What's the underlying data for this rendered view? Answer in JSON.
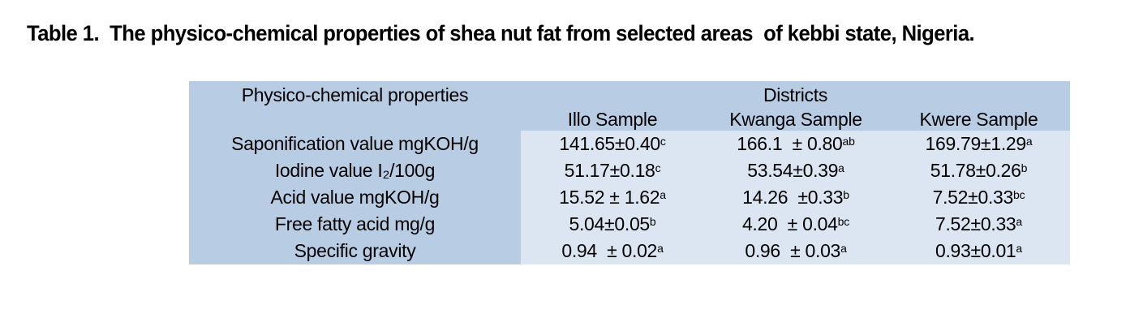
{
  "title": "Table 1.  The physico-chemical properties of shea nut fat from selected areas  of kebbi state, Nigeria.",
  "colors": {
    "header_bg": "#b8cce4",
    "cell_bg": "#dce6f2",
    "text": "#000000",
    "page_bg": "#ffffff"
  },
  "table": {
    "corner_header": "Physico-chemical properties",
    "group_header": "Districts",
    "columns": [
      "Illo Sample",
      "Kwanga Sample",
      "Kwere Sample"
    ],
    "rows": [
      {
        "property": "Saponification value mgKOH/g",
        "values": [
          {
            "text": "141.65±0.40",
            "sup": "c"
          },
          {
            "text": "166.1  ± 0.80",
            "sup": "ab"
          },
          {
            "text": "169.79±1.29",
            "sup": "a"
          }
        ]
      },
      {
        "property": "Iodine value I₂/100g",
        "values": [
          {
            "text": "51.17±0.18",
            "sup": "c"
          },
          {
            "text": "53.54±0.39",
            "sup": "a"
          },
          {
            "text": "51.78±0.26",
            "sup": "b"
          }
        ]
      },
      {
        "property": "Acid value mgKOH/g",
        "values": [
          {
            "text": "15.52 ± 1.62",
            "sup": "a"
          },
          {
            "text": "14.26  ±0.33",
            "sup": "b"
          },
          {
            "text": "7.52±0.33",
            "sup": "bc"
          }
        ]
      },
      {
        "property": "Free fatty acid mg/g",
        "values": [
          {
            "text": "5.04±0.05",
            "sup": "b"
          },
          {
            "text": "4.20  ± 0.04",
            "sup": "bc"
          },
          {
            "text": "7.52±0.33",
            "sup": "a"
          }
        ]
      },
      {
        "property": "Specific gravity",
        "values": [
          {
            "text": "0.94  ± 0.02",
            "sup": "a"
          },
          {
            "text": "0.96  ± 0.03",
            "sup": "a"
          },
          {
            "text": "0.93±0.01",
            "sup": "a"
          }
        ]
      }
    ]
  }
}
